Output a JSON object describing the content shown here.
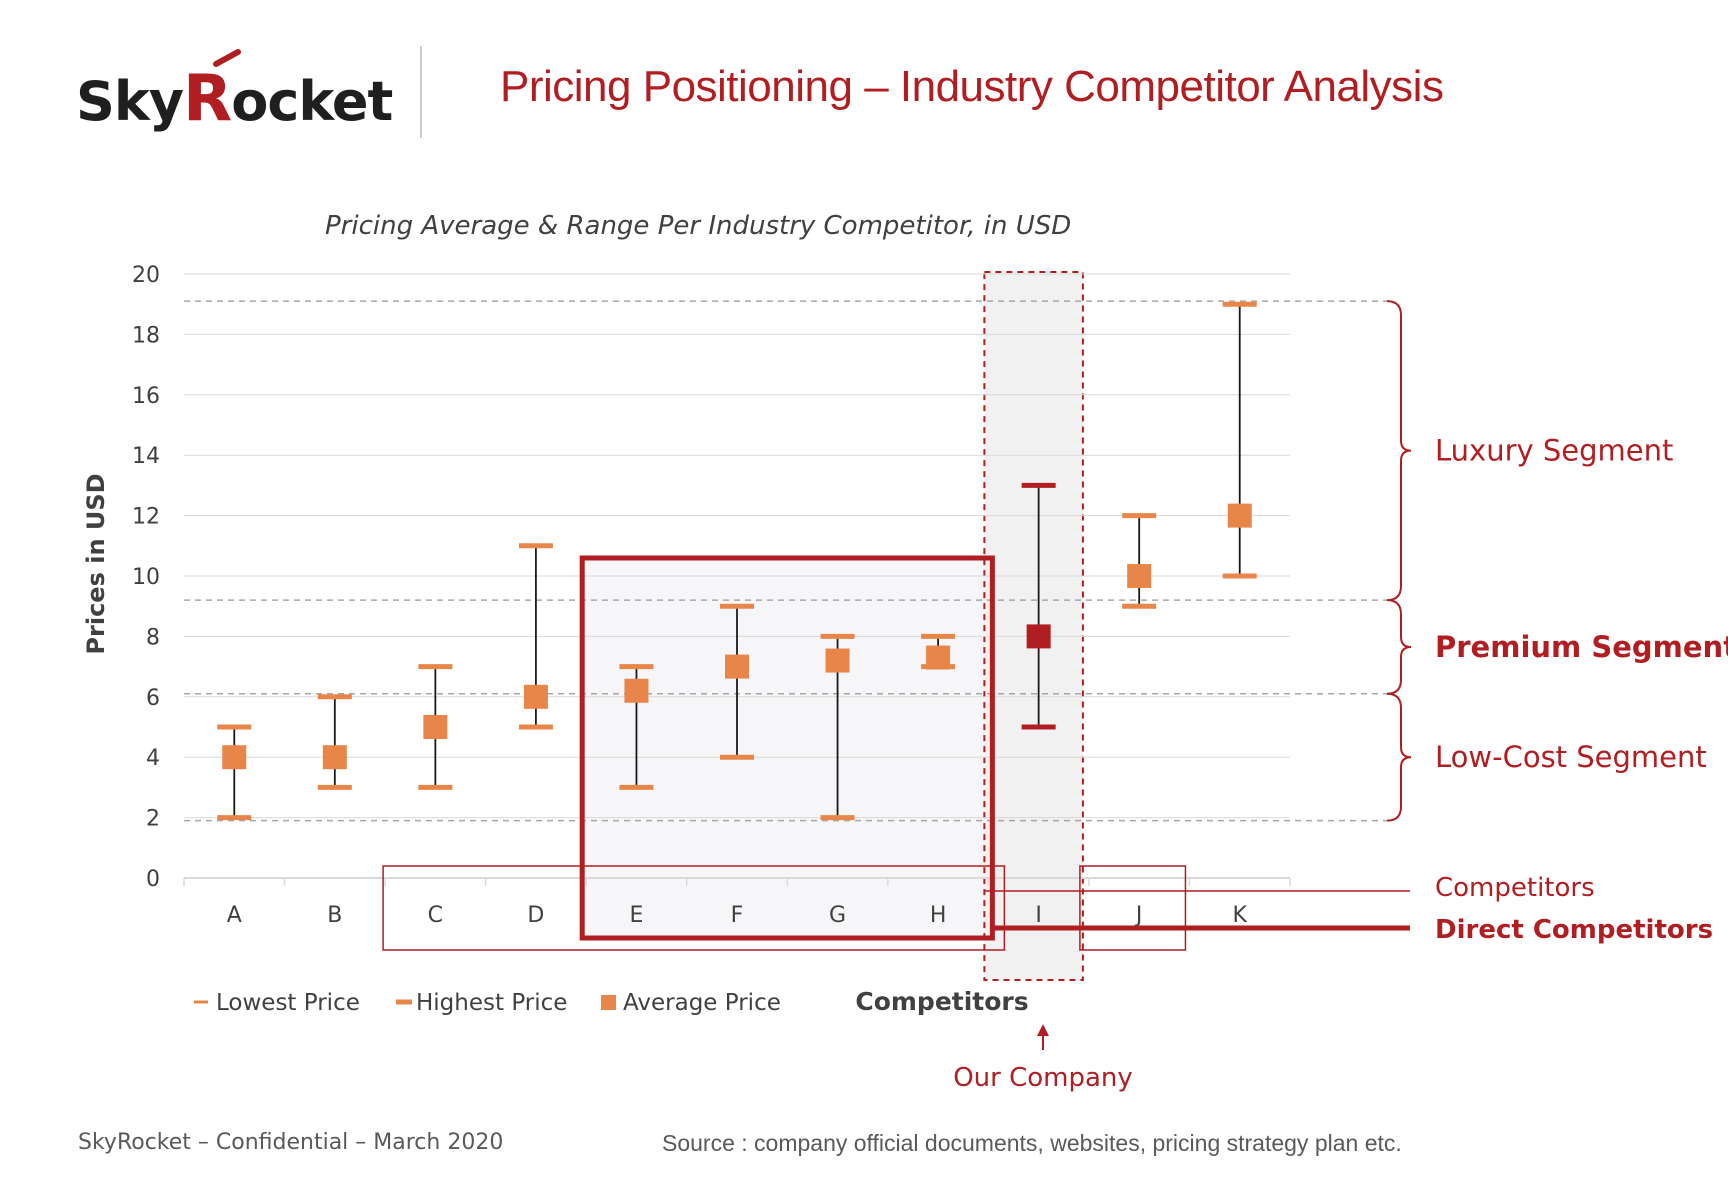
{
  "header": {
    "logo": {
      "part1": "Sky",
      "part2": "R",
      "part3": "ocket"
    },
    "title": "Pricing Positioning – Industry Competitor Analysis"
  },
  "chart_data": {
    "type": "scatter",
    "subtype": "range-with-average",
    "title": "Pricing Average & Range Per Industry Competitor, in USD",
    "xlabel": "Competitors",
    "ylabel": "Prices in USD",
    "ylim": [
      0,
      20
    ],
    "yticks": [
      0,
      2,
      4,
      6,
      8,
      10,
      12,
      14,
      16,
      18,
      20
    ],
    "grid": true,
    "legend_position": "bottom-left",
    "categories": [
      "A",
      "B",
      "C",
      "D",
      "E",
      "F",
      "G",
      "H",
      "I",
      "J",
      "K"
    ],
    "series": [
      {
        "name": "Lowest Price",
        "values": [
          2,
          3,
          3,
          5,
          3,
          4,
          2,
          7,
          5,
          9,
          10
        ]
      },
      {
        "name": "Highest Price",
        "values": [
          5,
          6,
          7,
          11,
          7,
          9,
          8,
          8,
          13,
          12,
          19
        ]
      },
      {
        "name": "Average Price",
        "values": [
          4,
          4,
          5,
          6,
          6.2,
          7,
          7.2,
          7.3,
          8,
          10,
          12
        ]
      }
    ],
    "highlight_category": "I",
    "colors": {
      "series": "#e8864a",
      "highlight": "#b01e22",
      "whisker": "#1a1a1a",
      "grid": "#d9d9d9",
      "threshold": "#a6a6a6"
    },
    "segment_thresholds": [
      1.9,
      6.1,
      9.2,
      19.1
    ],
    "segments": [
      {
        "label": "Luxury Segment",
        "from": 9.2,
        "to": 19.1,
        "bold": false
      },
      {
        "label": "Premium Segment",
        "from": 6.1,
        "to": 9.2,
        "bold": true
      },
      {
        "label": "Low-Cost Segment",
        "from": 1.9,
        "to": 6.1,
        "bold": false
      }
    ],
    "groups": {
      "competitors": {
        "label": "Competitors",
        "categories": [
          "C",
          "D",
          "E",
          "F",
          "G",
          "H"
        ],
        "extra": [
          "J"
        ]
      },
      "direct": {
        "label": "Direct Competitors",
        "categories": [
          "E",
          "F",
          "G",
          "H"
        ]
      },
      "our_company": {
        "label": "Our Company",
        "category": "I"
      }
    }
  },
  "footer": {
    "left": "SkyRocket – Confidential – March 2020",
    "right": "Source : company official documents, websites, pricing strategy plan etc."
  }
}
